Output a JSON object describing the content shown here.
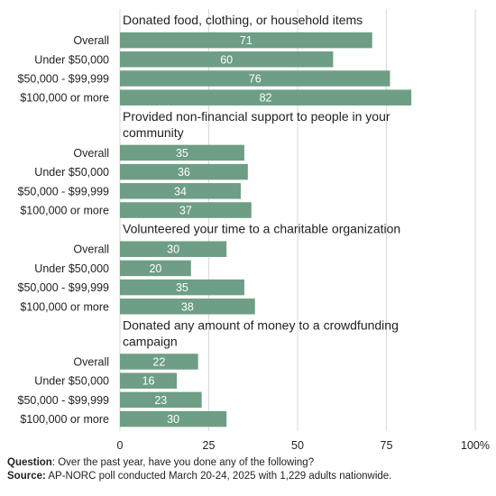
{
  "chart_data": {
    "type": "bar",
    "orientation": "horizontal",
    "categories": [
      "Overall",
      "Under $50,000",
      "$50,000 - $99,999",
      "$100,000 or more"
    ],
    "groups": [
      {
        "title": [
          "Donated food, clothing, or household items"
        ],
        "values": [
          71,
          60,
          76,
          82
        ]
      },
      {
        "title": [
          "Provided non-financial support to people in your",
          "community"
        ],
        "values": [
          35,
          36,
          34,
          37
        ]
      },
      {
        "title": [
          "Volunteered your time to a charitable organization"
        ],
        "values": [
          30,
          20,
          35,
          38
        ]
      },
      {
        "title": [
          "Donated any amount of money to a crowdfunding",
          "campaign"
        ],
        "values": [
          22,
          16,
          23,
          30
        ]
      }
    ],
    "xlim": [
      0,
      100
    ],
    "xticks": [
      {
        "value": 0,
        "label": "0"
      },
      {
        "value": 25,
        "label": "25"
      },
      {
        "value": 50,
        "label": "50"
      },
      {
        "value": 75,
        "label": "75"
      },
      {
        "value": 100,
        "label": "100%"
      }
    ],
    "grid": true,
    "colors": {
      "bar": "#6e9e85",
      "bar_label": "#ffffff",
      "grid": "#d9d9d9",
      "text": "#222222"
    }
  },
  "footer": {
    "question_label": "Question",
    "question_text": ": Over the past year, have you done any of the following?",
    "source_label": "Source:",
    "source_text": " AP-NORC poll conducted March 20-24, 2025 with 1,229 adults nationwide."
  }
}
